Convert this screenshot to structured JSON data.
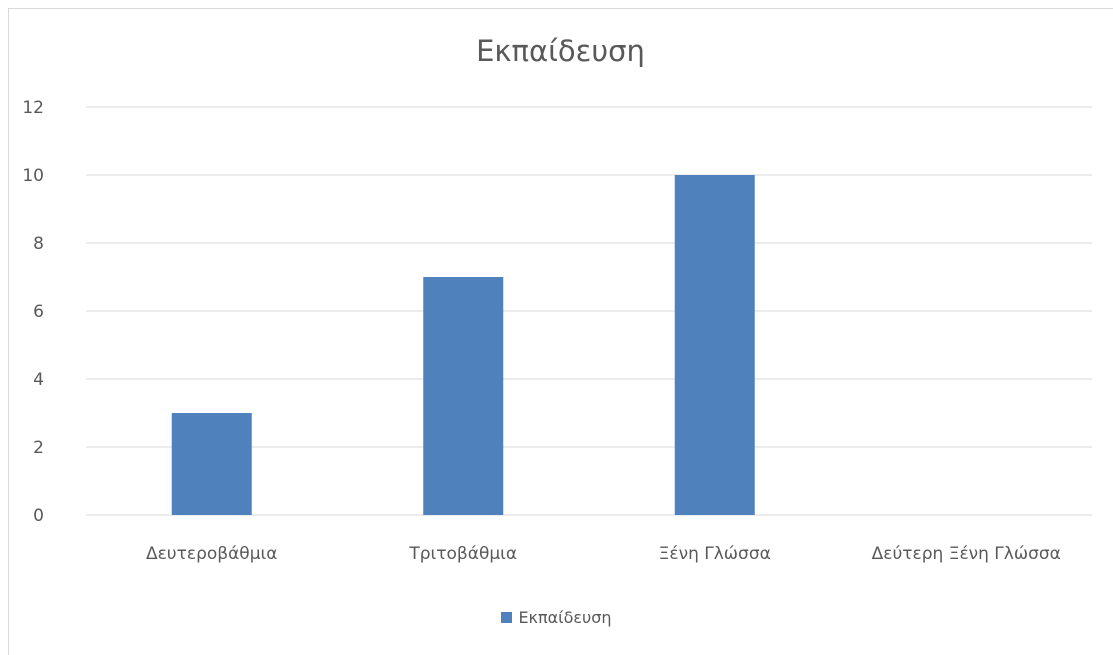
{
  "chart_data": {
    "type": "bar",
    "title": "Εκπαίδευση",
    "categories": [
      "Δευτεροβάθμια",
      "Τριτοβάθμια",
      "Ξένη Γλώσσα",
      "Δεύτερη Ξένη Γλώσσα"
    ],
    "series": [
      {
        "name": "Εκπαίδευση",
        "values": [
          3,
          7,
          10,
          0
        ],
        "color": "#4f81bd"
      }
    ],
    "ylim": [
      0,
      12
    ],
    "yticks": [
      0,
      2,
      4,
      6,
      8,
      10,
      12
    ],
    "grid": true,
    "legend": "bottom"
  }
}
